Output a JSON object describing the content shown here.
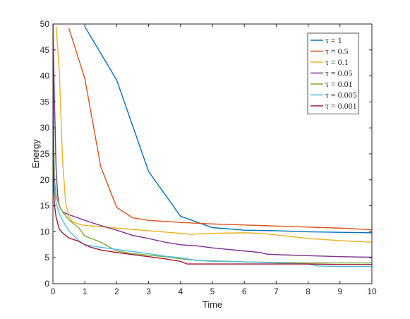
{
  "chart_data": {
    "type": "line",
    "title": "",
    "xlabel": "Time",
    "ylabel": "Energy",
    "xlim": [
      0,
      10
    ],
    "ylim": [
      0,
      50
    ],
    "xticks": [
      0,
      1,
      2,
      3,
      4,
      5,
      6,
      7,
      8,
      9,
      10
    ],
    "yticks": [
      0,
      5,
      10,
      15,
      20,
      25,
      30,
      35,
      40,
      45,
      50
    ],
    "grid": false,
    "legend_position": "top-right",
    "series": [
      {
        "name": "τ = 1",
        "color": "#0072BD",
        "x": [
          1,
          2,
          3,
          4,
          5,
          6,
          7,
          8,
          9,
          10
        ],
        "y": [
          49.5,
          39.2,
          21.6,
          13.0,
          10.8,
          10.3,
          10.2,
          10.0,
          9.9,
          9.8
        ]
      },
      {
        "name": "τ = 0.5",
        "color": "#D95319",
        "x": [
          0.5,
          1,
          1.5,
          2,
          2.5,
          3,
          3.5,
          4,
          5,
          6,
          7,
          8,
          9,
          10
        ],
        "y": [
          49.2,
          39.5,
          22.5,
          14.7,
          12.7,
          12.2,
          12.0,
          11.8,
          11.5,
          11.3,
          11.1,
          10.9,
          10.7,
          10.4
        ]
      },
      {
        "name": "τ = 0.1",
        "color": "#EDB120",
        "x": [
          0.1,
          0.2,
          0.3,
          0.4,
          0.5,
          0.6,
          0.8,
          1,
          1.5,
          2,
          3,
          4,
          4.3,
          5,
          6,
          6.5,
          7,
          8,
          9,
          10
        ],
        "y": [
          49.5,
          41.0,
          24.0,
          15.5,
          13.0,
          12.0,
          11.5,
          11.2,
          11.0,
          10.7,
          10.2,
          9.7,
          9.5,
          9.7,
          9.8,
          9.7,
          9.4,
          8.7,
          8.3,
          8.0
        ]
      },
      {
        "name": "τ = 0.05",
        "color": "#7E2F8E",
        "x": [
          0,
          0.05,
          0.1,
          0.15,
          0.2,
          0.3,
          0.5,
          1,
          1.5,
          2,
          2.5,
          3,
          3.5,
          4,
          4.5,
          5,
          5.5,
          6,
          6.5,
          6.7,
          7,
          8,
          9,
          10
        ],
        "y": [
          50,
          35,
          22,
          17,
          15,
          13.8,
          13.3,
          12.2,
          11.2,
          10.3,
          9.3,
          8.7,
          8.0,
          7.5,
          7.3,
          6.9,
          6.6,
          6.3,
          6.0,
          5.7,
          5.6,
          5.4,
          5.2,
          5.1
        ]
      },
      {
        "name": "τ = 0.01",
        "color": "#77AC30",
        "x": [
          0,
          0.02,
          0.05,
          0.1,
          0.2,
          0.3,
          0.5,
          0.8,
          1,
          1.5,
          2,
          2.5,
          3,
          3.5,
          4,
          4.5,
          5,
          6,
          7,
          8,
          9,
          10
        ],
        "y": [
          50,
          30,
          20,
          17,
          15,
          13.8,
          12.3,
          10.8,
          9.2,
          8.0,
          6.3,
          5.8,
          5.5,
          5.2,
          4.8,
          4.5,
          4.4,
          4.2,
          4.1,
          4.0,
          4.0,
          4.0
        ]
      },
      {
        "name": "τ = 0.005",
        "color": "#4DBEEE",
        "x": [
          0,
          0.01,
          0.03,
          0.05,
          0.1,
          0.2,
          0.3,
          0.5,
          0.8,
          1,
          1.5,
          2,
          2.5,
          3,
          3.5,
          4,
          4.5,
          5,
          6,
          7,
          8,
          8.3,
          9,
          10
        ],
        "y": [
          50,
          30,
          21,
          18,
          15.5,
          13.5,
          12.2,
          10.2,
          8.3,
          7.5,
          7.0,
          6.6,
          6.2,
          5.8,
          5.3,
          5.0,
          4.5,
          4.3,
          4.2,
          4.0,
          3.8,
          3.4,
          3.3,
          3.3
        ]
      },
      {
        "name": "τ = 0.001",
        "color": "#A2142F",
        "x": [
          0,
          0.005,
          0.01,
          0.02,
          0.05,
          0.1,
          0.2,
          0.3,
          0.5,
          0.8,
          1,
          1.2,
          1.5,
          2,
          2.5,
          3,
          3.5,
          4,
          4.2,
          4.5,
          5,
          6,
          7,
          8,
          9,
          10
        ],
        "y": [
          50,
          35,
          25,
          19,
          15,
          12.8,
          10.5,
          9.8,
          8.8,
          8.2,
          7.5,
          7.0,
          6.5,
          6.0,
          5.6,
          5.2,
          4.8,
          4.3,
          3.8,
          3.8,
          3.8,
          3.8,
          3.8,
          3.8,
          3.7,
          3.7
        ]
      }
    ]
  }
}
